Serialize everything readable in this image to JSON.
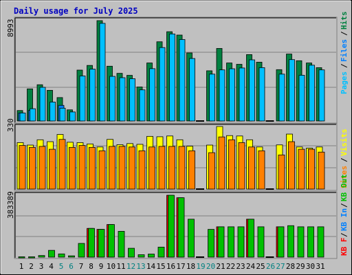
{
  "chart_data": {
    "type": "bar",
    "title": "Daily usage for July 2025",
    "categories": [
      "1",
      "2",
      "3",
      "4",
      "5",
      "6",
      "7",
      "8",
      "9",
      "10",
      "11",
      "12",
      "13",
      "14",
      "15",
      "16",
      "17",
      "18",
      "19",
      "20",
      "21",
      "22",
      "23",
      "24",
      "25",
      "26",
      "27",
      "28",
      "29",
      "30",
      "31"
    ],
    "weekend_days": [
      "5",
      "6",
      "12",
      "13",
      "19",
      "20",
      "26",
      "27"
    ],
    "panels": [
      {
        "name": "hits-files-pages",
        "ymax_label": "8993",
        "ymax": 8993,
        "side_label": [
          "Pages",
          "Files",
          "Hits"
        ],
        "series": [
          {
            "name": "Hits",
            "color": "#008040",
            "values": [
              940,
              2880,
              3250,
              2750,
              2100,
              1000,
              4560,
              4980,
              8993,
              4910,
              4270,
              4090,
              3050,
              5200,
              7100,
              8000,
              7700,
              6100,
              0,
              4500,
              6500,
              5200,
              5080,
              5950,
              5270,
              0,
              4600,
              6000,
              5400,
              5200,
              4780
            ]
          },
          {
            "name": "Files",
            "color": "#0080ff",
            "values": [
              720,
              950,
              0,
              0,
              1400,
              0,
              0,
              0,
              0,
              0,
              0,
              0,
              0,
              0,
              0,
              0,
              0,
              0,
              0,
              0,
              0,
              0,
              0,
              0,
              0,
              0,
              0,
              0,
              0,
              0,
              0
            ]
          },
          {
            "name": "Pages",
            "color": "#00c0ff",
            "values": [
              720,
              1100,
              3020,
              1700,
              1150,
              810,
              4040,
              4650,
              8750,
              4000,
              3880,
              3790,
              2790,
              4690,
              6580,
              7800,
              7300,
              5600,
              0,
              4200,
              4580,
              4680,
              4750,
              5480,
              4780,
              0,
              4200,
              5500,
              4100,
              5000,
              4580
            ]
          }
        ]
      },
      {
        "name": "visits-sites",
        "ymax_label": "330",
        "ymax": 330,
        "side_label": [
          "Visits",
          "Sites"
        ],
        "series": [
          {
            "name": "Visits",
            "color": "#ffff00",
            "values": [
              245,
              232,
              260,
              250,
              288,
              247,
              245,
              238,
              222,
              262,
              234,
              240,
              236,
              278,
              276,
              280,
              260,
              226,
              0,
              232,
              330,
              282,
              280,
              260,
              222,
              0,
              233,
              290,
              222,
              216,
              222
            ]
          },
          {
            "name": "Sites",
            "color": "#ff8000",
            "values": [
              230,
              220,
              225,
              210,
              262,
              220,
              230,
              220,
              202,
              225,
              225,
              222,
              202,
              222,
              225,
              225,
              225,
              202,
              0,
              192,
              275,
              260,
              245,
              222,
              202,
              0,
              180,
              250,
              210,
              210,
              195
            ]
          }
        ]
      },
      {
        "name": "kbf-kbin-kbout",
        "ymax_label": "383389",
        "ymax": 383389,
        "side_label": [
          "KB F",
          "KB In",
          "KB Out"
        ],
        "series": [
          {
            "name": "KB F",
            "color": "#ff0000",
            "values": [
              0,
              0,
              0,
              0,
              0,
              0,
              0,
              178000,
              172000,
              202000,
              0,
              0,
              0,
              0,
              0,
              383389,
              368000,
              0,
              0,
              0,
              188000,
              0,
              0,
              235000,
              0,
              0,
              188000,
              0,
              0,
              0,
              0
            ]
          },
          {
            "name": "KB In",
            "color": "#0080ff",
            "values": [
              0,
              0,
              0,
              0,
              0,
              0,
              0,
              0,
              0,
              0,
              0,
              0,
              0,
              0,
              0,
              0,
              0,
              0,
              0,
              0,
              0,
              0,
              0,
              0,
              0,
              0,
              0,
              0,
              0,
              0,
              0
            ]
          },
          {
            "name": "KB Out",
            "color": "#00c000",
            "values": [
              2000,
              2000,
              10000,
              42000,
              20000,
              8000,
              85000,
              178000,
              172000,
              202000,
              160000,
              55000,
              15000,
              19000,
              62000,
              383389,
              368000,
              235000,
              0,
              172000,
              188000,
              188000,
              188000,
              235000,
              188000,
              0,
              188000,
              195000,
              188000,
              188000,
              188000
            ]
          }
        ]
      }
    ]
  }
}
